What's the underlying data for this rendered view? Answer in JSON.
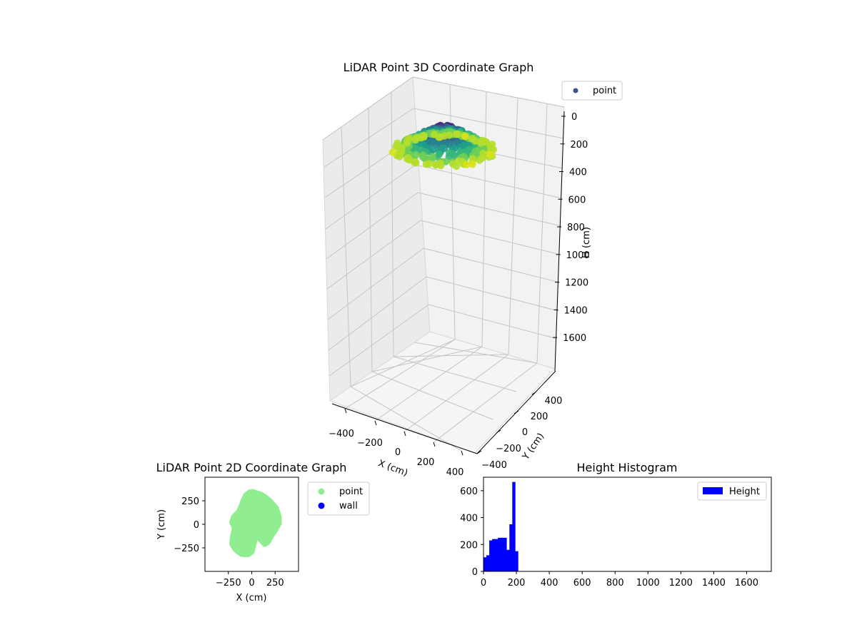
{
  "chart_data": [
    {
      "type": "scatter3d",
      "title": "LiDAR Point 3D Coordinate Graph",
      "xlabel": "X (cm)",
      "ylabel": "Y (cm)",
      "zlabel": "H (cm)",
      "xlim": [
        -500,
        500
      ],
      "ylim": [
        -500,
        500
      ],
      "zlim": [
        0,
        1750
      ],
      "z_inverted": true,
      "xticks": [
        "−400",
        "−200",
        "0",
        "200",
        "400"
      ],
      "yticks": [
        "−400",
        "−200",
        "0",
        "200",
        "400"
      ],
      "zticks": [
        "0",
        "200",
        "400",
        "600",
        "800",
        "1000",
        "1200",
        "1400",
        "1600"
      ],
      "zticks_values": [
        0,
        200,
        400,
        600,
        800,
        1000,
        1200,
        1400,
        1600
      ],
      "legend": [
        {
          "label": "point",
          "color": "#3b528b"
        }
      ],
      "colormap": "viridis",
      "points_shape": "dome-shaped cluster of points around the origin, heights 0–250 cm"
    },
    {
      "type": "scatter",
      "title": "LiDAR Point 2D Coordinate Graph",
      "xlabel": "X (cm)",
      "ylabel": "Y (cm)",
      "xlim": [
        -500,
        500
      ],
      "ylim": [
        -500,
        500
      ],
      "xticks": [
        "−250",
        "0",
        "250"
      ],
      "xticks_values": [
        -250,
        0,
        250
      ],
      "yticks": [
        "250",
        "0",
        "−250"
      ],
      "yticks_values": [
        250,
        0,
        -250
      ],
      "legend": [
        {
          "label": "point",
          "color": "#90ee90"
        },
        {
          "label": "wall",
          "color": "#0000ff"
        }
      ],
      "outline": [
        [
          -20,
          340
        ],
        [
          10,
          345
        ],
        [
          50,
          330
        ],
        [
          90,
          320
        ],
        [
          140,
          290
        ],
        [
          200,
          240
        ],
        [
          260,
          170
        ],
        [
          290,
          80
        ],
        [
          290,
          10
        ],
        [
          250,
          -60
        ],
        [
          210,
          -120
        ],
        [
          170,
          -190
        ],
        [
          140,
          -210
        ],
        [
          100,
          -170
        ],
        [
          60,
          -120
        ],
        [
          40,
          -130
        ],
        [
          20,
          -210
        ],
        [
          0,
          -290
        ],
        [
          -40,
          -320
        ],
        [
          -110,
          -315
        ],
        [
          -170,
          -270
        ],
        [
          -210,
          -210
        ],
        [
          -200,
          -120
        ],
        [
          -180,
          -40
        ],
        [
          -210,
          20
        ],
        [
          -190,
          80
        ],
        [
          -140,
          130
        ],
        [
          -110,
          190
        ],
        [
          -90,
          250
        ],
        [
          -60,
          310
        ]
      ]
    },
    {
      "type": "bar",
      "title": "Height Histogram",
      "xlabel": "",
      "ylabel": "",
      "xlim": [
        0,
        1750
      ],
      "ylim": [
        0,
        700
      ],
      "xticks": [
        "0",
        "200",
        "400",
        "600",
        "800",
        "1000",
        "1200",
        "1400",
        "1600"
      ],
      "xticks_values": [
        0,
        200,
        400,
        600,
        800,
        1000,
        1200,
        1400,
        1600
      ],
      "yticks": [
        "0",
        "200",
        "400",
        "600"
      ],
      "yticks_values": [
        0,
        200,
        400,
        600
      ],
      "bin_width": 17.5,
      "bin_starts": [
        0,
        17.5,
        35,
        52.5,
        70,
        87.5,
        105,
        122.5,
        140,
        157.5,
        175,
        192.5,
        210,
        227.5
      ],
      "values": [
        105,
        120,
        230,
        240,
        240,
        250,
        250,
        250,
        160,
        350,
        665,
        150,
        0,
        0
      ],
      "legend": [
        {
          "label": "Height",
          "color": "#0000ff"
        }
      ]
    }
  ]
}
